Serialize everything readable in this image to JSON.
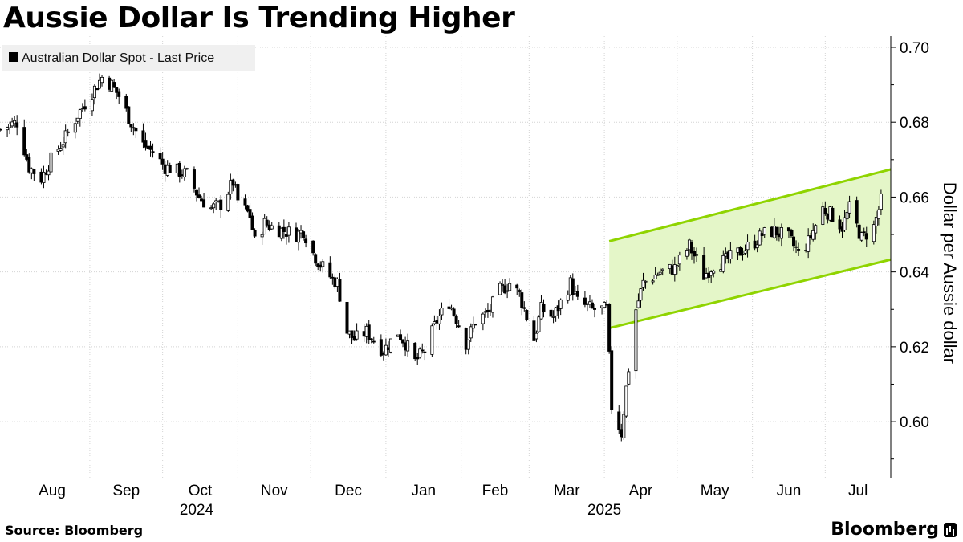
{
  "title": "Aussie Dollar Is Trending Higher",
  "source": "Source: Bloomberg",
  "brand": "Bloomberg",
  "colors": {
    "channel_line": "#8fd400",
    "channel_fill": "#e4f6c8",
    "candle": "#000000",
    "grid": "#d4d4d4"
  },
  "chart_data": {
    "type": "candlestick",
    "legend": {
      "label": "Australian Dollar Spot - Last Price",
      "position": "top-left"
    },
    "ylabel": "Dollar per Aussie dollar",
    "ylim": [
      0.585,
      0.703
    ],
    "yticks": [
      "0.60",
      "0.62",
      "0.64",
      "0.66",
      "0.68",
      "0.70"
    ],
    "xlim": [
      "2024-07-26",
      "2025-07-28"
    ],
    "grid": true,
    "x_ticks": [
      {
        "label": "Aug",
        "date": "2024-08-01"
      },
      {
        "label": "Sep",
        "date": "2024-09-01"
      },
      {
        "label": "Oct",
        "date": "2024-10-01"
      },
      {
        "label": "Nov",
        "date": "2024-11-01"
      },
      {
        "label": "Dec",
        "date": "2024-12-01"
      },
      {
        "label": "Jan",
        "date": "2025-01-01"
      },
      {
        "label": "Feb",
        "date": "2025-02-01"
      },
      {
        "label": "Mar",
        "date": "2025-03-01"
      },
      {
        "label": "Apr",
        "date": "2025-04-01"
      },
      {
        "label": "May",
        "date": "2025-05-01"
      },
      {
        "label": "Jun",
        "date": "2025-06-01"
      },
      {
        "label": "Jul",
        "date": "2025-07-01"
      }
    ],
    "year_labels": [
      {
        "label": "2024",
        "date": "2024-10-15"
      },
      {
        "label": "2025",
        "date": "2025-04-01"
      }
    ],
    "price_path": [
      [
        "2024-07-26",
        0.678
      ],
      [
        "2024-08-02",
        0.68
      ],
      [
        "2024-08-07",
        0.668
      ],
      [
        "2024-08-12",
        0.665
      ],
      [
        "2024-08-16",
        0.67
      ],
      [
        "2024-08-22",
        0.676
      ],
      [
        "2024-08-27",
        0.682
      ],
      [
        "2024-09-02",
        0.688
      ],
      [
        "2024-09-06",
        0.692
      ],
      [
        "2024-09-10",
        0.69
      ],
      [
        "2024-09-13",
        0.687
      ],
      [
        "2024-09-18",
        0.68
      ],
      [
        "2024-09-23",
        0.674
      ],
      [
        "2024-09-27",
        0.672
      ],
      [
        "2024-10-02",
        0.668
      ],
      [
        "2024-10-07",
        0.667
      ],
      [
        "2024-10-11",
        0.666
      ],
      [
        "2024-10-16",
        0.66
      ],
      [
        "2024-10-21",
        0.657
      ],
      [
        "2024-10-25",
        0.658
      ],
      [
        "2024-10-30",
        0.664
      ],
      [
        "2024-11-01",
        0.659
      ],
      [
        "2024-11-06",
        0.655
      ],
      [
        "2024-11-08",
        0.648
      ],
      [
        "2024-11-12",
        0.653
      ],
      [
        "2024-11-15",
        0.652
      ],
      [
        "2024-11-20",
        0.651
      ],
      [
        "2024-11-25",
        0.65
      ],
      [
        "2024-11-28",
        0.651
      ],
      [
        "2024-12-02",
        0.645
      ],
      [
        "2024-12-05",
        0.642
      ],
      [
        "2024-12-10",
        0.638
      ],
      [
        "2024-12-12",
        0.637
      ],
      [
        "2024-12-16",
        0.624
      ],
      [
        "2024-12-19",
        0.622
      ],
      [
        "2024-12-24",
        0.624
      ],
      [
        "2024-12-31",
        0.619
      ],
      [
        "2025-01-06",
        0.624
      ],
      [
        "2025-01-09",
        0.621
      ],
      [
        "2025-01-13",
        0.616
      ],
      [
        "2025-01-17",
        0.619
      ],
      [
        "2025-01-22",
        0.627
      ],
      [
        "2025-01-27",
        0.632
      ],
      [
        "2025-01-31",
        0.626
      ],
      [
        "2025-02-03",
        0.621
      ],
      [
        "2025-02-07",
        0.627
      ],
      [
        "2025-02-12",
        0.629
      ],
      [
        "2025-02-17",
        0.635
      ],
      [
        "2025-02-21",
        0.637
      ],
      [
        "2025-02-25",
        0.634
      ],
      [
        "2025-03-03",
        0.622
      ],
      [
        "2025-03-06",
        0.63
      ],
      [
        "2025-03-11",
        0.628
      ],
      [
        "2025-03-18",
        0.637
      ],
      [
        "2025-03-21",
        0.632
      ],
      [
        "2025-03-27",
        0.63
      ],
      [
        "2025-04-02",
        0.63
      ],
      [
        "2025-04-04",
        0.604
      ],
      [
        "2025-04-08",
        0.597
      ],
      [
        "2025-04-10",
        0.609
      ],
      [
        "2025-04-14",
        0.63
      ],
      [
        "2025-04-17",
        0.637
      ],
      [
        "2025-04-24",
        0.64
      ],
      [
        "2025-04-30",
        0.641
      ],
      [
        "2025-05-06",
        0.647
      ],
      [
        "2025-05-12",
        0.639
      ],
      [
        "2025-05-16",
        0.642
      ],
      [
        "2025-05-21",
        0.643
      ],
      [
        "2025-05-26",
        0.645
      ],
      [
        "2025-06-02",
        0.648
      ],
      [
        "2025-06-05",
        0.65
      ],
      [
        "2025-06-10",
        0.651
      ],
      [
        "2025-06-16",
        0.649
      ],
      [
        "2025-06-20",
        0.645
      ],
      [
        "2025-06-24",
        0.648
      ],
      [
        "2025-06-30",
        0.657
      ],
      [
        "2025-07-04",
        0.655
      ],
      [
        "2025-07-08",
        0.652
      ],
      [
        "2025-07-11",
        0.657
      ],
      [
        "2025-07-16",
        0.649
      ],
      [
        "2025-07-21",
        0.652
      ],
      [
        "2025-07-24",
        0.659
      ]
    ],
    "channel": {
      "start_date": "2025-04-03",
      "end_date": "2025-07-28",
      "upper": [
        0.6482,
        0.6674
      ],
      "lower": [
        0.625,
        0.6433
      ]
    }
  }
}
